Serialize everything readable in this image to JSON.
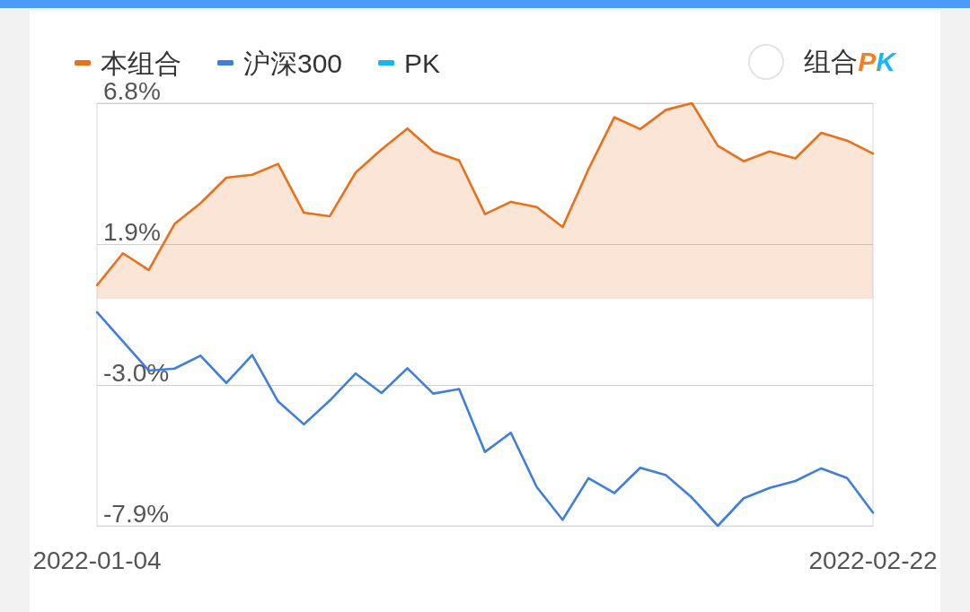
{
  "chart_data": {
    "type": "line",
    "categories": [
      "2022-01-04",
      null,
      null,
      null,
      null,
      null,
      null,
      null,
      null,
      null,
      null,
      null,
      null,
      null,
      null,
      null,
      null,
      null,
      null,
      null,
      null,
      null,
      null,
      null,
      null,
      null,
      null,
      null,
      null,
      null,
      "2022-02-22"
    ],
    "series": [
      {
        "name": "本组合",
        "type": "area",
        "color": "#e8711c",
        "values": [
          0.47,
          1.58,
          1.0,
          2.6,
          3.32,
          4.21,
          4.31,
          4.69,
          2.99,
          2.87,
          4.39,
          5.19,
          5.92,
          5.12,
          4.81,
          2.94,
          3.37,
          3.19,
          2.49,
          4.5,
          6.31,
          5.9,
          6.57,
          6.8,
          5.32,
          4.78,
          5.12,
          4.88,
          5.77,
          5.5,
          5.05
        ]
      },
      {
        "name": "沪深300",
        "type": "line",
        "color": "#3f7fd9",
        "values": [
          -0.47,
          -1.48,
          -2.5,
          -2.43,
          -1.98,
          -2.93,
          -1.96,
          -3.57,
          -4.37,
          -3.54,
          -2.6,
          -3.28,
          -2.42,
          -3.3,
          -3.14,
          -5.33,
          -4.66,
          -6.55,
          -7.69,
          -6.24,
          -6.76,
          -5.88,
          -6.14,
          -6.92,
          -7.9,
          -6.94,
          -6.58,
          -6.34,
          -5.9,
          -6.24,
          -7.44
        ]
      },
      {
        "name": "PK",
        "type": "line",
        "color": "#1bb4f2",
        "values": [
          null,
          null,
          null,
          null,
          null,
          null,
          null,
          null,
          null,
          null,
          null,
          null,
          null,
          null,
          null,
          null,
          null,
          null,
          null,
          null,
          null,
          null,
          null,
          null,
          null,
          null,
          null,
          null,
          null,
          null,
          null
        ]
      }
    ],
    "ylim": [
      -7.9,
      6.8
    ],
    "yticks": [
      {
        "value": -7.9,
        "label": "-7.9%"
      },
      {
        "value": -3.0,
        "label": "-3.0%"
      },
      {
        "value": 1.9,
        "label": "1.9%"
      },
      {
        "value": 6.8,
        "label": "6.8%"
      }
    ],
    "grid": "y",
    "legend": "top left",
    "marker": "none",
    "line_style": "solid",
    "annotations": [
      "组合PK"
    ]
  }
}
